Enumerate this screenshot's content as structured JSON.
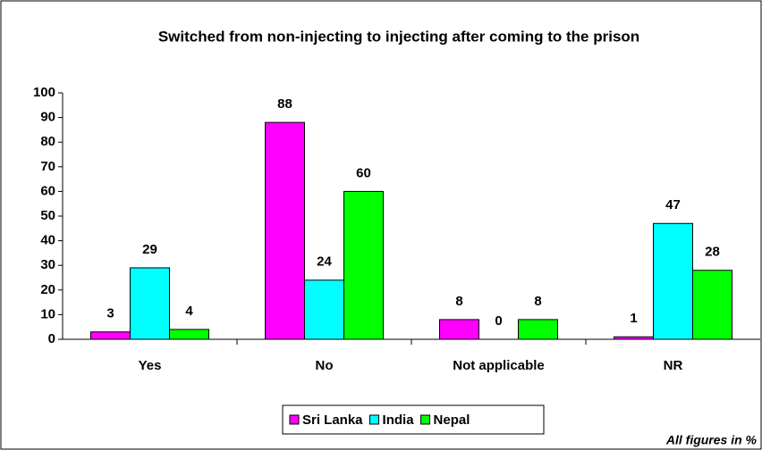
{
  "chart_data": {
    "type": "bar",
    "title": "Switched from non-injecting to injecting after coming to the prison",
    "categories": [
      "Yes",
      "No",
      "Not applicable",
      "NR"
    ],
    "series": [
      {
        "name": "Sri Lanka",
        "color": "#ff00ff",
        "values": [
          3,
          88,
          8,
          1
        ]
      },
      {
        "name": "India",
        "color": "#00ffff",
        "values": [
          29,
          24,
          0,
          47
        ]
      },
      {
        "name": "Nepal",
        "color": "#00ff00",
        "values": [
          4,
          60,
          8,
          28
        ]
      }
    ],
    "ylim": [
      0,
      100
    ],
    "yticks": [
      0,
      10,
      20,
      30,
      40,
      50,
      60,
      70,
      80,
      90,
      100
    ],
    "legend": "bottom",
    "annotation": "All figures in %"
  }
}
